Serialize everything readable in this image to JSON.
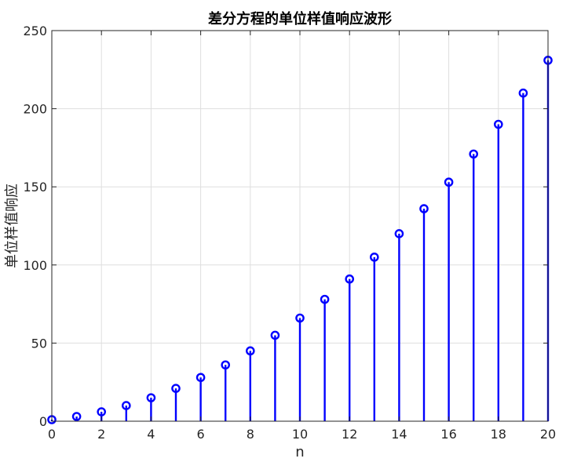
{
  "chart_data": {
    "type": "stem",
    "title": "差分方程的单位样值响应波形",
    "xlabel": "n",
    "ylabel": "单位样值响应",
    "xlim": [
      0,
      20
    ],
    "ylim": [
      0,
      250
    ],
    "xticks": [
      0,
      2,
      4,
      6,
      8,
      10,
      12,
      14,
      16,
      18,
      20
    ],
    "yticks": [
      0,
      50,
      100,
      150,
      200,
      250
    ],
    "grid": true,
    "marker": "circle",
    "series": [
      {
        "color": "#0000FF",
        "x": [
          0,
          1,
          2,
          3,
          4,
          5,
          6,
          7,
          8,
          9,
          10,
          11,
          12,
          13,
          14,
          15,
          16,
          17,
          18,
          19,
          20
        ],
        "y": [
          1,
          3,
          6,
          10,
          15,
          21,
          28,
          36,
          45,
          55,
          66,
          78,
          91,
          105,
          120,
          136,
          153,
          171,
          190,
          210,
          231
        ]
      }
    ]
  }
}
